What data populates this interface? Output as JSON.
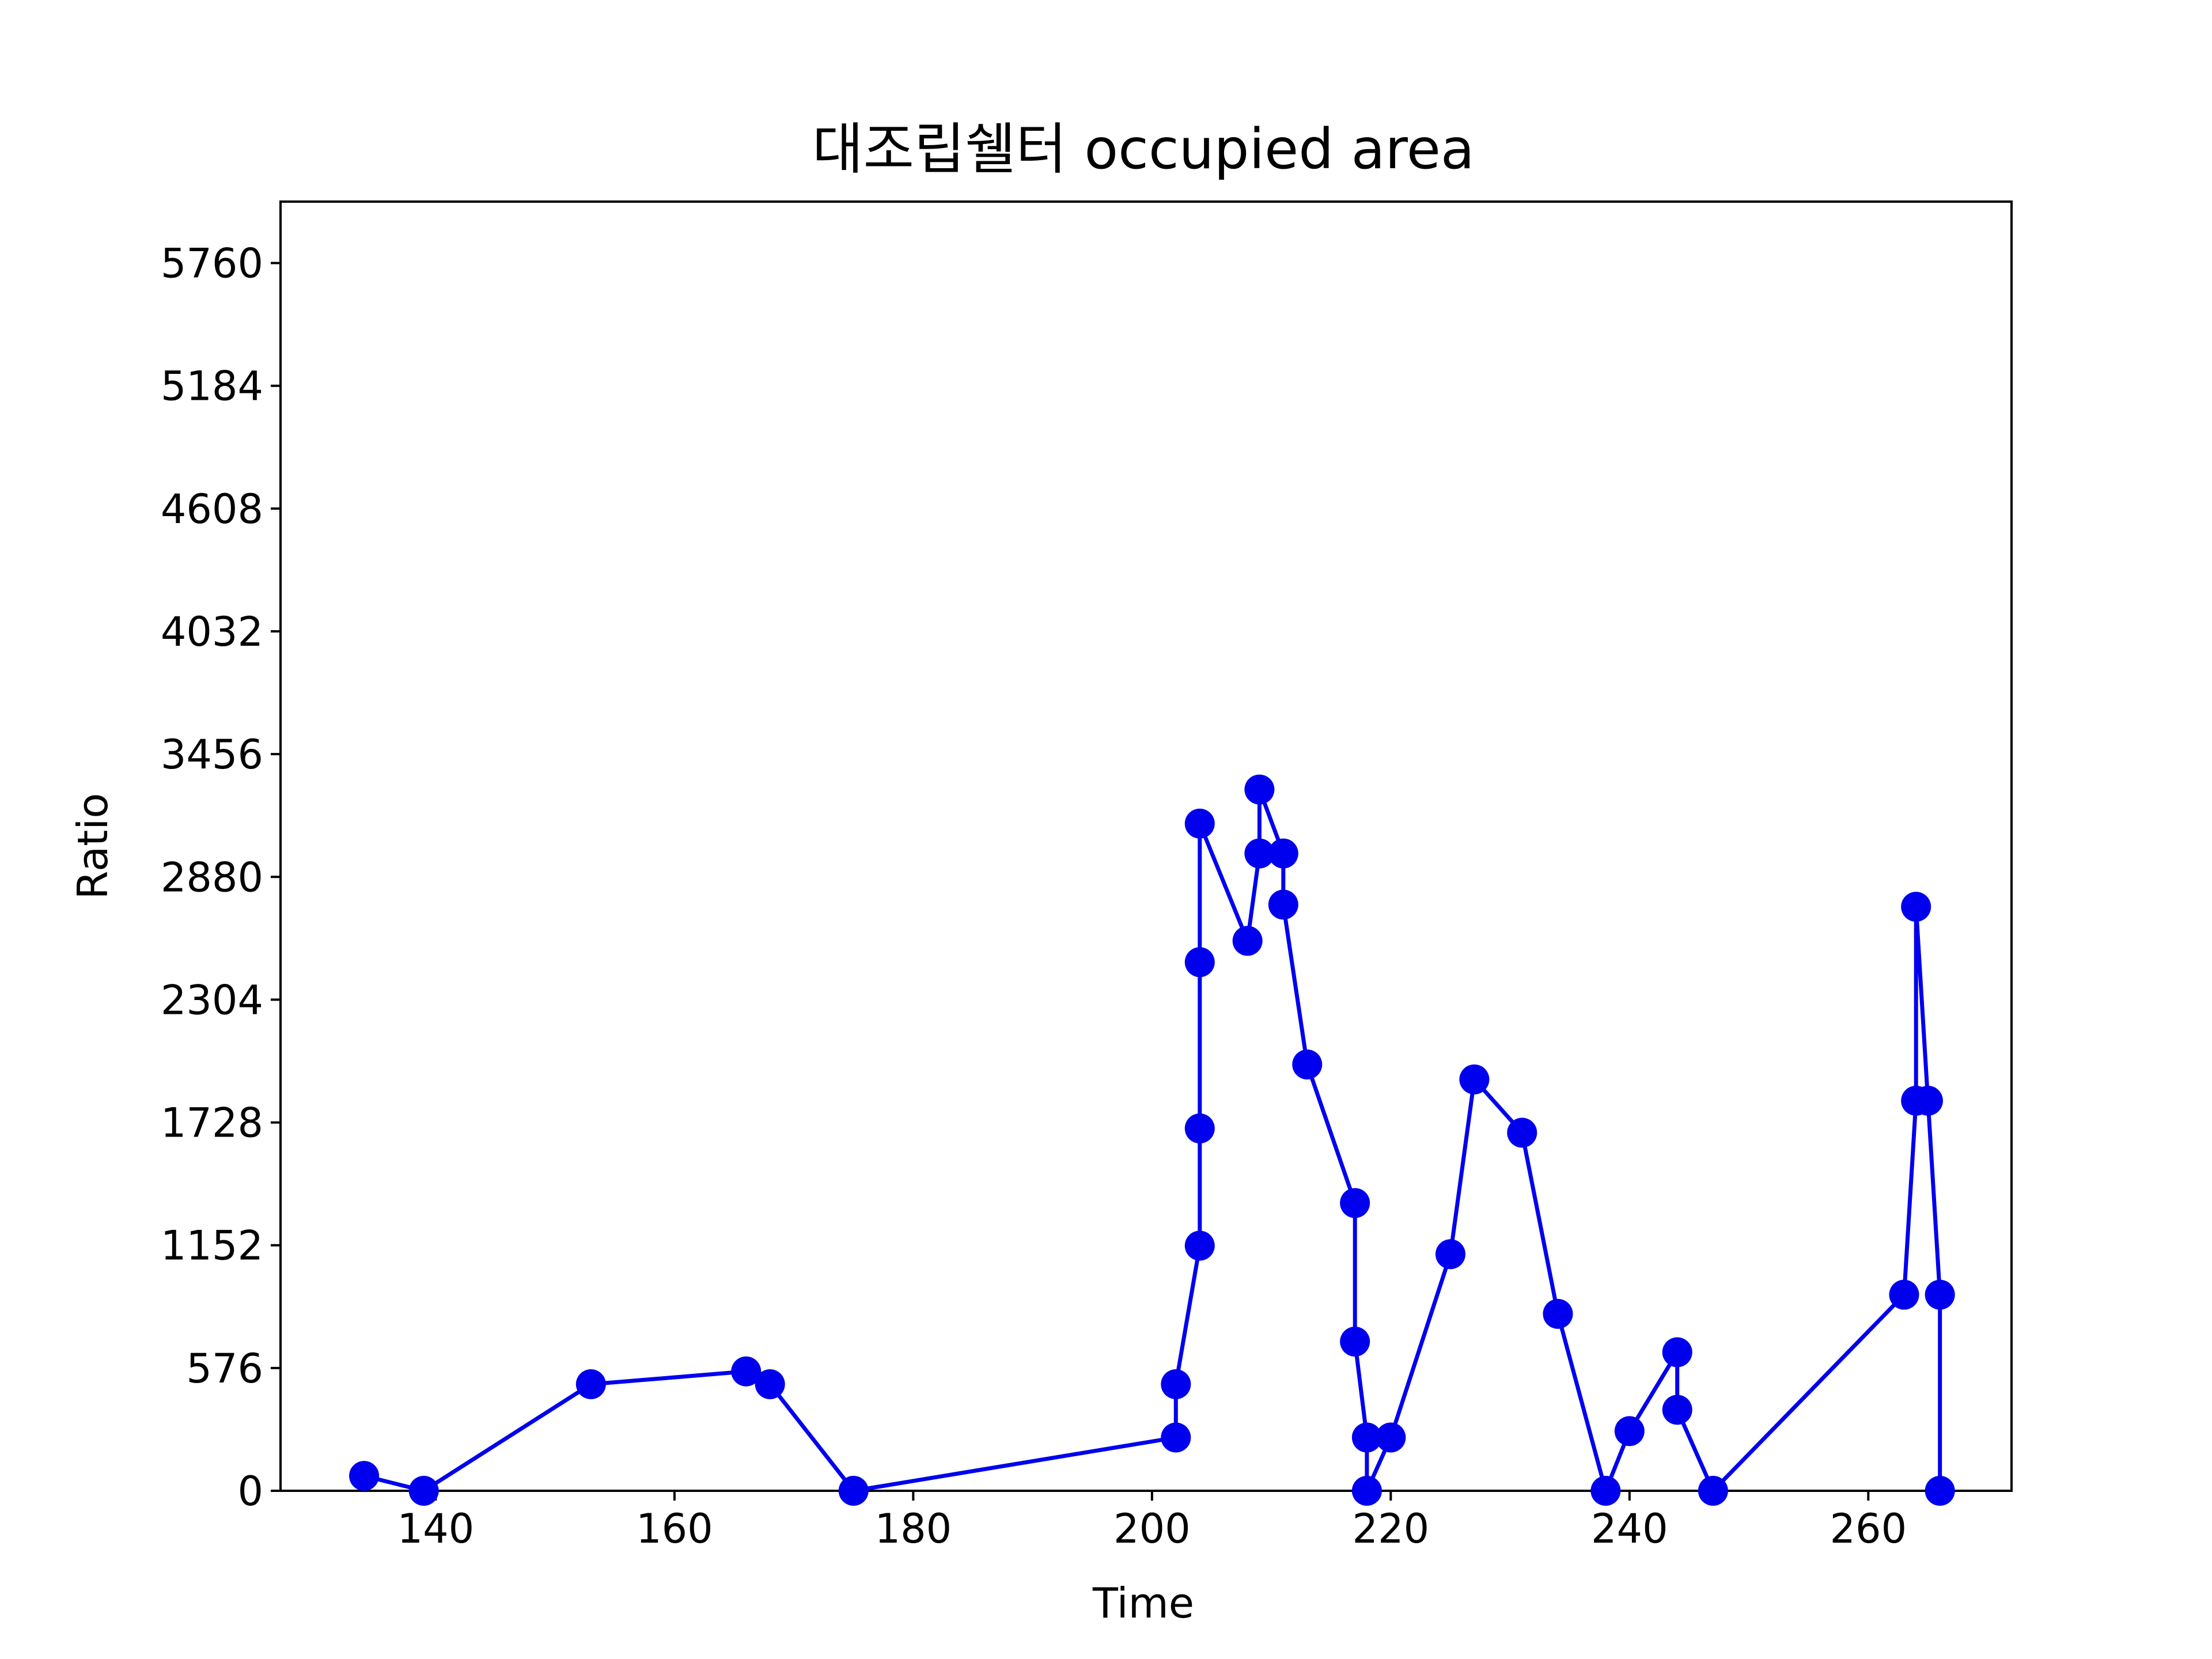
{
  "chart_data": {
    "type": "line",
    "title": "대조립쉘터 occupied area",
    "xlabel": "Time",
    "ylabel": "Ratio",
    "xlim": [
      127,
      272
    ],
    "ylim": [
      0,
      6048
    ],
    "xticks": [
      140,
      160,
      180,
      200,
      220,
      240,
      260
    ],
    "yticks": [
      0,
      576,
      1152,
      1728,
      2304,
      2880,
      3456,
      4032,
      4608,
      5184,
      5760
    ],
    "grid": false,
    "legend": "none",
    "series": [
      {
        "color": "#0000ee",
        "marker": "circle",
        "x": [
          134,
          139,
          153,
          166,
          168,
          175,
          202,
          202,
          204,
          204,
          204,
          204,
          208,
          209,
          209,
          211,
          211,
          213,
          217,
          217,
          218,
          218,
          220,
          225,
          227,
          231,
          234,
          238,
          240,
          244,
          244,
          247,
          263,
          264,
          264,
          265,
          266,
          266
        ],
        "y": [
          70,
          0,
          500,
          560,
          500,
          0,
          250,
          500,
          1150,
          1700,
          2480,
          3130,
          2580,
          2990,
          3290,
          2990,
          2750,
          2000,
          1350,
          700,
          250,
          0,
          250,
          1110,
          1930,
          1680,
          830,
          0,
          280,
          650,
          380,
          0,
          920,
          1830,
          2740,
          1830,
          920,
          0
        ]
      }
    ]
  }
}
